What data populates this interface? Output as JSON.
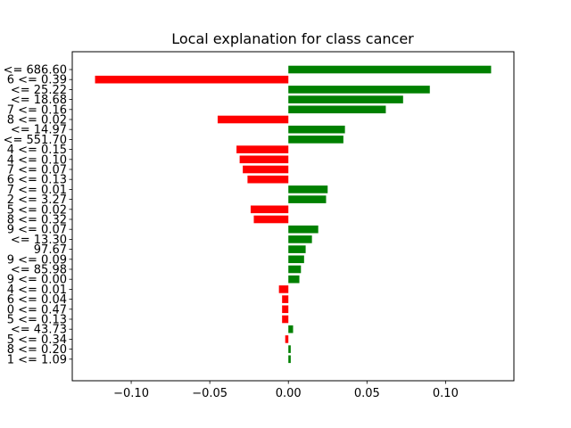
{
  "chart_data": {
    "type": "bar",
    "orientation": "horizontal",
    "title": "Local explanation for class cancer",
    "xlabel": "",
    "ylabel": "",
    "xlim": [
      -0.1375,
      0.1435
    ],
    "xticks": [
      "-0.10",
      "-0.05",
      "0.00",
      "0.05",
      "0.10"
    ],
    "xtick_values": [
      -0.1,
      -0.05,
      0.0,
      0.05,
      0.1
    ],
    "positive_color": "#008000",
    "negative_color": "#ff0000",
    "categories": [
      "<= 686.60",
      "6 <= 0.39",
      "<= 25.22",
      "<= 18.68",
      "7 <= 0.16",
      "8 <= 0.02",
      "<= 14.97",
      "<= 551.70",
      "4 <= 0.15",
      "4 <= 0.10",
      "7 <= 0.07",
      "6 <= 0.13",
      "7 <= 0.01",
      "2 <= 3.27",
      "5 <= 0.02",
      "8 <= 0.32",
      "9 <= 0.07",
      "<= 13.30",
      "97.67",
      "9 <= 0.09",
      "<= 85.98",
      "9 <= 0.00",
      "4 <= 0.01",
      "6 <= 0.04",
      "0 <= 0.47",
      "5 <= 0.13",
      "<= 43.73",
      "5 <= 0.34",
      "8 <= 0.20",
      "1 <= 1.09"
    ],
    "values": [
      0.129,
      -0.123,
      0.09,
      0.073,
      0.062,
      -0.045,
      0.036,
      0.035,
      -0.033,
      -0.031,
      -0.029,
      -0.026,
      0.025,
      0.024,
      -0.024,
      -0.022,
      0.019,
      0.015,
      0.011,
      0.01,
      0.008,
      0.007,
      -0.006,
      -0.004,
      -0.004,
      -0.004,
      0.003,
      -0.002,
      0.0015,
      0.0015
    ]
  }
}
